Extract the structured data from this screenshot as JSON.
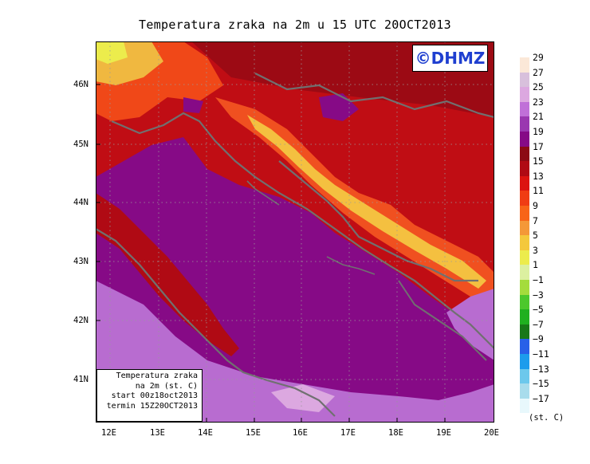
{
  "title": "Temperatura zraka na 2m u 15 UTC 20OCT2013",
  "logo": "©DHMZ",
  "info": {
    "line1": "Temperatura zraka",
    "line2": "na 2m (st. C)",
    "line3": "start 00z18oct2013",
    "line4": "termin 15Z20OCT2013"
  },
  "lat_ticks": [
    "46N",
    "45N",
    "44N",
    "43N",
    "42N",
    "41N"
  ],
  "lon_ticks": [
    "12E",
    "13E",
    "14E",
    "15E",
    "16E",
    "17E",
    "18E",
    "19E",
    "20E"
  ],
  "legend": {
    "labels": [
      "29",
      "27",
      "25",
      "23",
      "21",
      "19",
      "17",
      "15",
      "13",
      "11",
      "9",
      "7",
      "5",
      "3",
      "1",
      "−1",
      "−3",
      "−5",
      "−7",
      "−9",
      "−11",
      "−13",
      "−15",
      "−17"
    ],
    "colors": [
      "#fbe8d8",
      "#d8c0dc",
      "#dca8e0",
      "#c070d8",
      "#9a38b0",
      "#860a86",
      "#8c0a14",
      "#b00a14",
      "#dc1410",
      "#f03c14",
      "#f86418",
      "#f49838",
      "#f4c83c",
      "#ecec4c",
      "#dcf0a0",
      "#a4dc3c",
      "#4cc82c",
      "#20b020",
      "#187818",
      "#2860e8",
      "#1c9cec",
      "#6cc8ec",
      "#a8dcec",
      "#e8f8fc"
    ],
    "unit": "(st. C)"
  },
  "colors": {
    "coastline": "#707070",
    "logo_text": "#1f3fd0"
  }
}
